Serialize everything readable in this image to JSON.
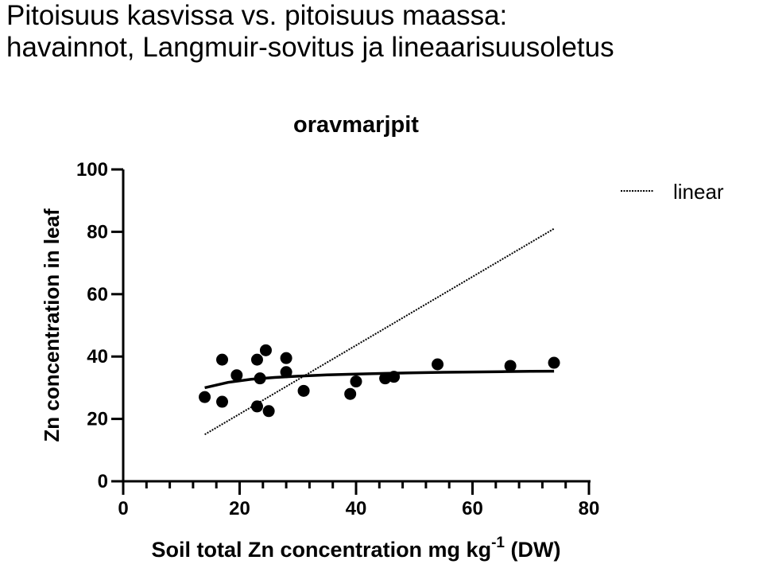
{
  "page": {
    "title_line1": "Pitoisuus kasvissa vs. pitoisuus maassa:",
    "title_line2": "havainnot, Langmuir-sovitus ja lineaarisuusoletus"
  },
  "chart_data": {
    "type": "scatter",
    "title": "oravmarjpit",
    "xlabel": "Soil total Zn concentration mg kg",
    "xlabel_sup": "-1",
    "xlabel_suffix": " (DW)",
    "ylabel": "Zn concentration in leaf",
    "xlim": [
      0,
      80
    ],
    "ylim": [
      0,
      100
    ],
    "xticks": [
      0,
      20,
      40,
      60,
      80
    ],
    "yticks": [
      0,
      20,
      40,
      60,
      80,
      100
    ],
    "grid": false,
    "legend": {
      "placement": "top-right",
      "entries": [
        "linear"
      ]
    },
    "series": [
      {
        "type": "scatter",
        "points": [
          [
            14,
            27
          ],
          [
            17,
            39
          ],
          [
            17,
            25.5
          ],
          [
            19.5,
            34
          ],
          [
            23,
            39
          ],
          [
            23.5,
            33
          ],
          [
            24.5,
            42
          ],
          [
            23,
            24
          ],
          [
            25,
            22.5
          ],
          [
            28,
            35
          ],
          [
            28,
            39.5
          ],
          [
            31,
            29
          ],
          [
            39,
            28
          ],
          [
            40,
            32
          ],
          [
            45,
            33
          ],
          [
            46.5,
            33.5
          ],
          [
            54,
            37.5
          ],
          [
            66.5,
            37
          ],
          [
            74,
            38
          ]
        ]
      },
      {
        "type": "line",
        "style": "solid",
        "points": [
          [
            14,
            30
          ],
          [
            18,
            31.7
          ],
          [
            22,
            32.7
          ],
          [
            26,
            33.3
          ],
          [
            30,
            33.7
          ],
          [
            35,
            34.1
          ],
          [
            40,
            34.4
          ],
          [
            45,
            34.6
          ],
          [
            50,
            34.8
          ],
          [
            55,
            34.95
          ],
          [
            60,
            35.05
          ],
          [
            65,
            35.15
          ],
          [
            70,
            35.25
          ],
          [
            74,
            35.3
          ]
        ]
      },
      {
        "name": "linear",
        "type": "line",
        "style": "dotted",
        "points": [
          [
            14,
            15
          ],
          [
            74,
            81
          ]
        ]
      }
    ]
  }
}
